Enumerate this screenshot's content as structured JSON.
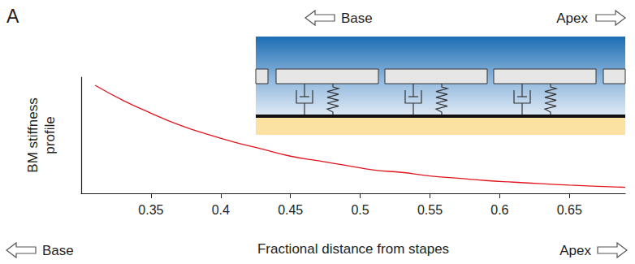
{
  "header": {
    "label": "A",
    "base": "Base",
    "apex": "Apex"
  },
  "chart_data": {
    "type": "line",
    "x_label": "Fractional distance from stapes",
    "y_label": "BM stiffness profile",
    "annotations": {
      "base": "Base",
      "apex": "Apex"
    },
    "x": [
      0.31,
      0.33,
      0.35,
      0.37,
      0.39,
      0.41,
      0.43,
      0.45,
      0.47,
      0.49,
      0.51,
      0.53,
      0.55,
      0.57,
      0.59,
      0.61,
      0.63,
      0.65,
      0.67,
      0.69
    ],
    "values": [
      0.93,
      0.8,
      0.69,
      0.59,
      0.51,
      0.44,
      0.38,
      0.32,
      0.28,
      0.24,
      0.2,
      0.18,
      0.15,
      0.13,
      0.11,
      0.096,
      0.083,
      0.071,
      0.061,
      0.052
    ],
    "color": "#e3141e",
    "xlim": [
      0.3,
      0.69
    ],
    "xticks": [
      0.35,
      0.4,
      0.45,
      0.5,
      0.55,
      0.6,
      0.65
    ],
    "ylim": [
      0,
      1
    ],
    "tick_labels": "x",
    "grid": false
  }
}
